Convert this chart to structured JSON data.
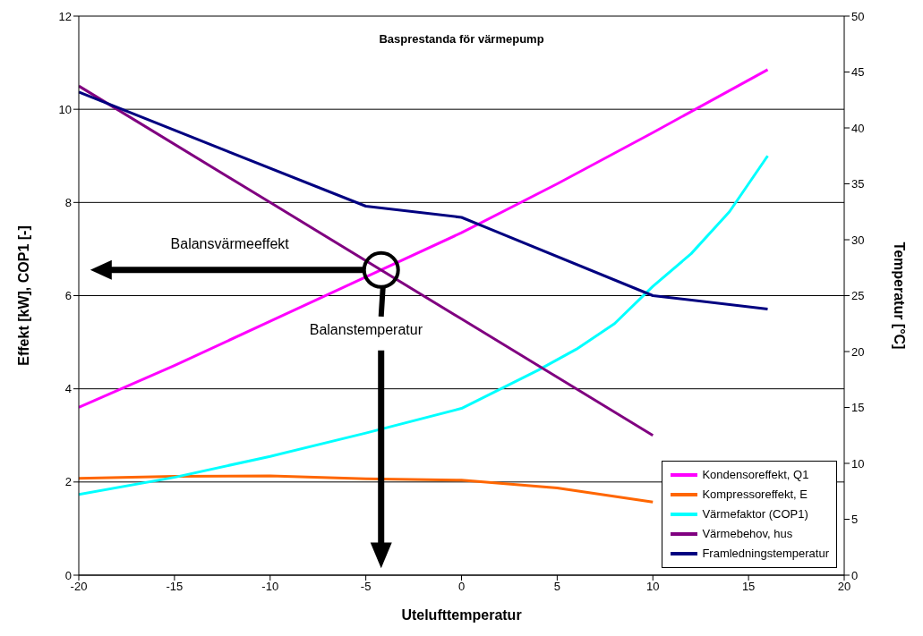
{
  "chart_data": {
    "type": "line",
    "title": "Basprestanda för värmepump",
    "xlabel": "Utelufttemperatur",
    "ylabel": "Effekt [kW], COP1 [-]",
    "y2label": "Temperatur [°C]",
    "annotations": [
      "Balansvärmeeffekt",
      "Balanstemperatur"
    ],
    "xlim": [
      -20,
      20
    ],
    "xticks": [
      -20,
      -15,
      -10,
      -5,
      0,
      5,
      10,
      15,
      20
    ],
    "ylim": [
      0,
      12
    ],
    "yticks": [
      0,
      2,
      4,
      6,
      8,
      10,
      12
    ],
    "y2lim": [
      0,
      50
    ],
    "y2ticks": [
      0,
      5,
      10,
      15,
      20,
      25,
      30,
      35,
      40,
      45,
      50
    ],
    "grid": "y",
    "legend": "bottom right",
    "marker": "none",
    "line_style": "solid",
    "series": [
      {
        "name": "Kondensoreffekt, Q1",
        "color": "#ff00ff",
        "x": [
          -20,
          -15,
          -10,
          -5,
          0,
          5,
          10,
          16
        ],
        "values": [
          3.6,
          4.5,
          5.45,
          6.4,
          7.35,
          8.4,
          9.5,
          10.85
        ]
      },
      {
        "name": "Kompressoreffekt, E",
        "color": "#ff6600",
        "x": [
          -20,
          -15,
          -10,
          -5,
          0,
          5,
          10
        ],
        "values": [
          2.08,
          2.12,
          2.13,
          2.07,
          2.04,
          1.87,
          1.57
        ]
      },
      {
        "name": "Värmefaktor (COP1)",
        "color": "#00ffff",
        "x": [
          -20,
          -15,
          -10,
          -5,
          0,
          4,
          6,
          8,
          10,
          12,
          14,
          16
        ],
        "values": [
          1.73,
          2.1,
          2.55,
          3.05,
          3.58,
          4.4,
          4.85,
          5.4,
          6.2,
          6.9,
          7.8,
          9.0
        ]
      },
      {
        "name": "Värmebehov, hus",
        "color": "#800080",
        "x": [
          -20,
          -10,
          0,
          10
        ],
        "values": [
          10.5,
          8.0,
          5.5,
          3.0
        ]
      },
      {
        "name": "Framledningstemperatur",
        "color": "#000080",
        "axis": "y2",
        "x": [
          -20,
          -5,
          0,
          10,
          16
        ],
        "values": [
          43.2,
          33.0,
          32.0,
          25.0,
          23.8
        ]
      }
    ]
  }
}
